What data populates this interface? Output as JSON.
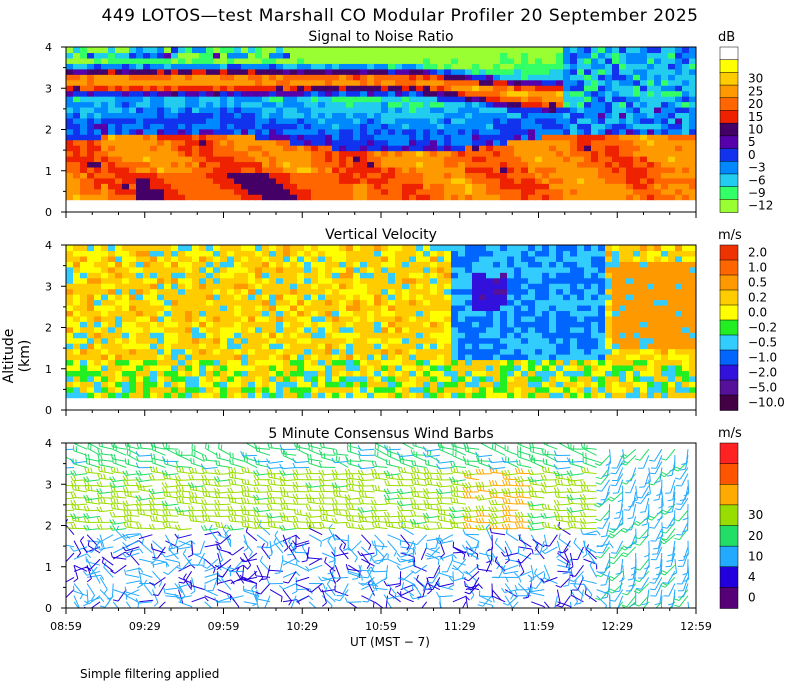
{
  "title": "449 LOTOS—test Marshall CO Modular Profiler 20 September 2025",
  "footer_note": "Simple filtering applied",
  "colors": {
    "snr": [
      "#99ff33",
      "#33ff66",
      "#22ccee",
      "#0088ff",
      "#1133ee",
      "#5500aa",
      "#440066",
      "#ee2200",
      "#ff6600",
      "#ff9900",
      "#ffcc00",
      "#ffff00",
      "#ffffff"
    ],
    "vv": [
      "#440044",
      "#551199",
      "#3311dd",
      "#0066ff",
      "#33ccff",
      "#22ee22",
      "#ffff00",
      "#ffcc00",
      "#ff9900",
      "#ff6600",
      "#ee3300"
    ],
    "wind": [
      "#550077",
      "#2200dd",
      "#22aaff",
      "#22dd66",
      "#99dd00",
      "#ffaa00",
      "#ff5500",
      "#ff2222"
    ]
  },
  "chart_data": [
    {
      "type": "heatmap",
      "name": "snr",
      "title": "Signal to Noise Ratio",
      "xlabel": "UT  (MST − 7)",
      "ylabel": "Altitude (km)",
      "ylim": [
        0,
        4
      ],
      "yticks": [
        "0",
        "1",
        "2",
        "3",
        "4"
      ],
      "xticks": [
        "08:59",
        "09:29",
        "09:59",
        "10:29",
        "10:59",
        "11:29",
        "11:59",
        "12:29",
        "12:59"
      ],
      "unit": "dB",
      "colorbar_labels": [
        "30",
        "25",
        "20",
        "15",
        "10",
        "5",
        "0",
        "−3",
        "−6",
        "−9",
        "−12"
      ],
      "levels": [
        -12,
        -9,
        -6,
        -3,
        0,
        5,
        10,
        15,
        20,
        25,
        30
      ]
    },
    {
      "type": "heatmap",
      "name": "vv",
      "title": "Vertical Velocity",
      "ylim": [
        0,
        4
      ],
      "yticks": [
        "0",
        "1",
        "2",
        "3",
        "4"
      ],
      "unit": "m/s",
      "colorbar_labels": [
        "2.0",
        "1.0",
        "0.5",
        "0.2",
        "0.0",
        "−0.2",
        "−0.5",
        "−1.0",
        "−2.0",
        "−5.0",
        "−10.0"
      ]
    },
    {
      "type": "scatter",
      "name": "wind",
      "title": "5 Minute Consensus Wind Barbs",
      "ylim": [
        0,
        4
      ],
      "yticks": [
        "0",
        "1",
        "2",
        "3",
        "4"
      ],
      "xticks": [
        "08:59",
        "09:29",
        "09:59",
        "10:29",
        "10:59",
        "11:29",
        "11:59",
        "12:29",
        "12:59"
      ],
      "unit": "m/s",
      "colorbar_labels": [
        "30",
        "20",
        "10",
        "4",
        "0"
      ],
      "speed_bins": [
        0,
        2,
        4,
        7,
        10,
        15,
        20,
        25,
        30
      ]
    }
  ]
}
